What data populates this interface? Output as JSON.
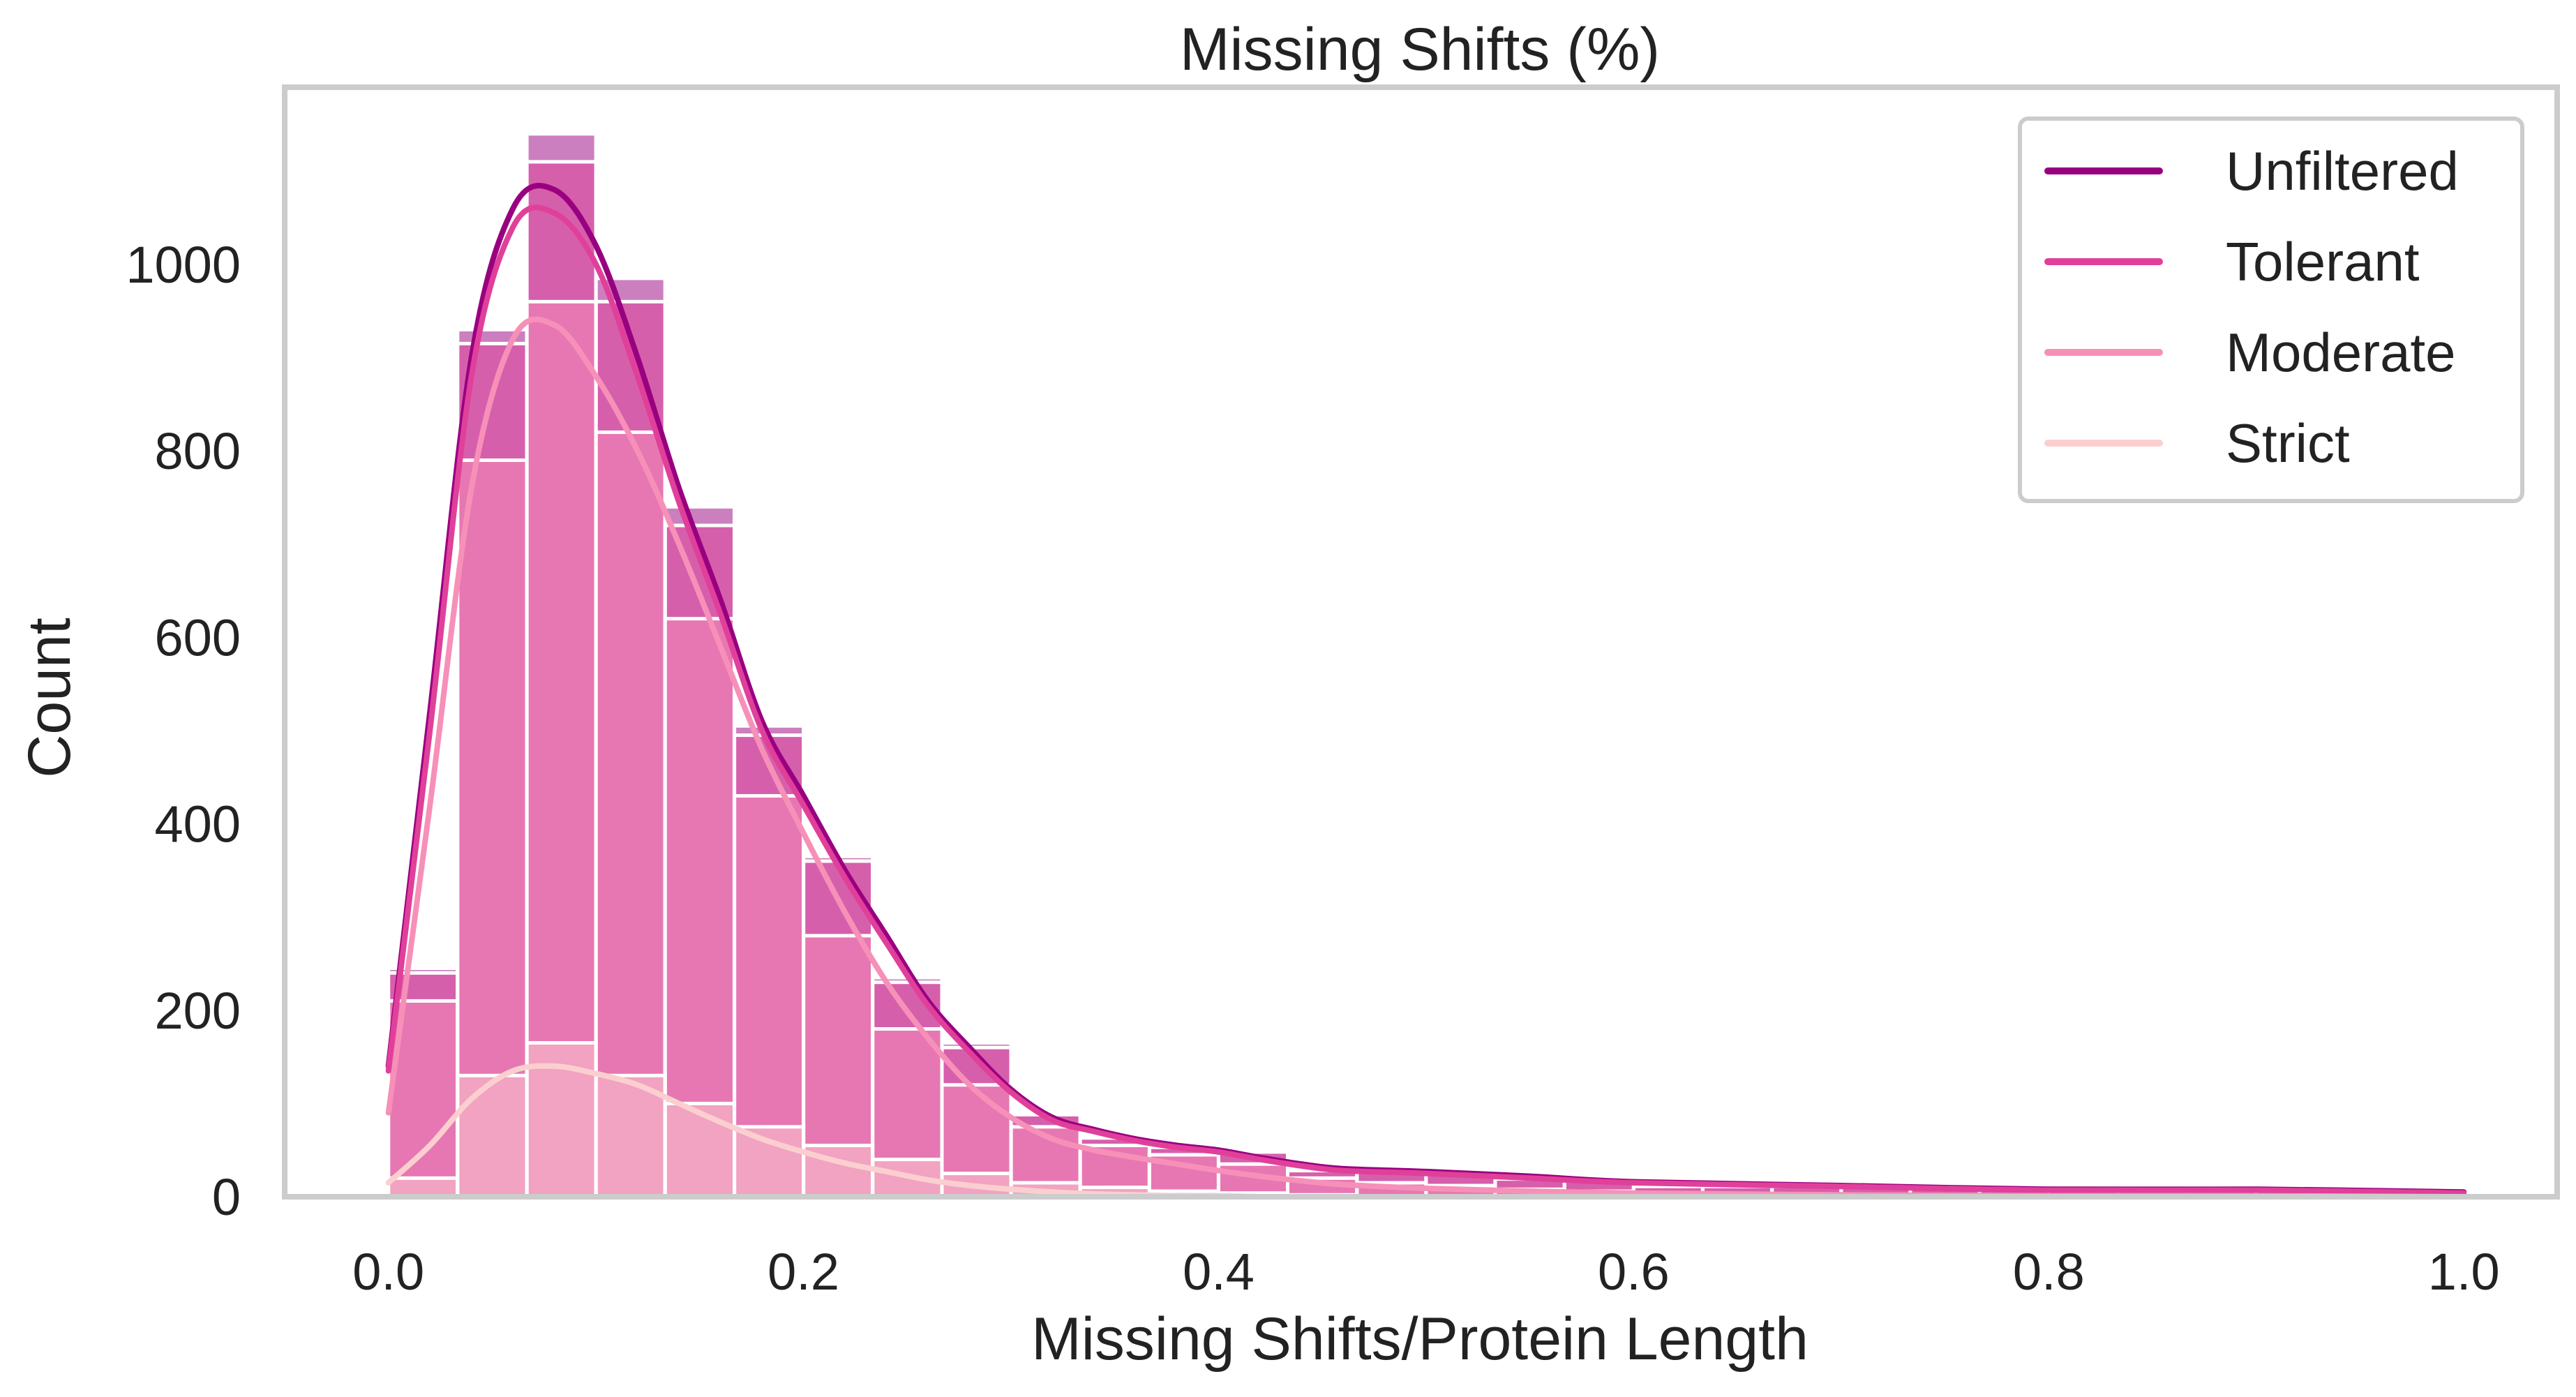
{
  "chart_data": {
    "type": "histogram",
    "title": "Missing Shifts (%)",
    "xlabel": "Missing Shifts/Protein Length",
    "ylabel": "Count",
    "xlim": [
      -0.05,
      1.045
    ],
    "ylim": [
      0,
      1190
    ],
    "xticks": [
      0.0,
      0.2,
      0.4,
      0.6,
      0.8,
      1.0
    ],
    "xtick_labels": [
      "0.0",
      "0.2",
      "0.4",
      "0.6",
      "0.8",
      "1.0"
    ],
    "yticks": [
      0,
      200,
      400,
      600,
      800,
      1000
    ],
    "ytick_labels": [
      "0",
      "200",
      "400",
      "600",
      "800",
      "1000"
    ],
    "grid": false,
    "legend_position": "top-right",
    "bin_edges": [
      0.0,
      0.0333,
      0.0667,
      0.1,
      0.1333,
      0.1667,
      0.2,
      0.2333,
      0.2667,
      0.3,
      0.3333,
      0.3667,
      0.4,
      0.4333,
      0.4667,
      0.5,
      0.5333,
      0.5667,
      0.6,
      0.6333,
      0.6667,
      0.7,
      0.7333,
      0.7667,
      0.8,
      0.8333,
      0.8667,
      0.9,
      0.9333,
      0.9667,
      1.0
    ],
    "series": [
      {
        "name": "Unfiltered",
        "color": "#990080",
        "counts": [
          245,
          930,
          1140,
          985,
          740,
          505,
          365,
          235,
          165,
          90,
          65,
          55,
          50,
          30,
          30,
          30,
          20,
          20,
          12,
          12,
          12,
          12,
          10,
          8,
          8,
          8,
          8,
          8,
          8,
          5
        ],
        "kde_x": [
          0,
          0.02,
          0.04,
          0.06,
          0.08,
          0.1,
          0.12,
          0.14,
          0.16,
          0.18,
          0.2,
          0.22,
          0.24,
          0.26,
          0.28,
          0.3,
          0.32,
          0.34,
          0.36,
          0.38,
          0.4,
          0.42,
          0.44,
          0.46,
          0.5,
          0.55,
          0.6,
          0.7,
          0.8,
          0.9,
          1.0
        ],
        "kde_y": [
          140,
          520,
          900,
          1060,
          1080,
          1020,
          900,
          760,
          640,
          510,
          430,
          350,
          280,
          210,
          160,
          115,
          85,
          72,
          62,
          55,
          50,
          42,
          35,
          30,
          27,
          22,
          16,
          12,
          8,
          8,
          5
        ]
      },
      {
        "name": "Tolerant",
        "color": "#e0409a",
        "counts": [
          240,
          915,
          1110,
          960,
          720,
          495,
          360,
          230,
          160,
          88,
          63,
          53,
          48,
          28,
          28,
          28,
          19,
          19,
          11,
          11,
          11,
          11,
          9,
          7,
          7,
          7,
          7,
          7,
          7,
          4
        ],
        "kde_x": [
          0,
          0.02,
          0.04,
          0.06,
          0.08,
          0.1,
          0.12,
          0.14,
          0.16,
          0.18,
          0.2,
          0.22,
          0.24,
          0.26,
          0.28,
          0.3,
          0.32,
          0.34,
          0.36,
          0.38,
          0.4,
          0.42,
          0.44,
          0.46,
          0.5,
          0.55,
          0.6,
          0.7,
          0.8,
          0.9,
          1.0
        ],
        "kde_y": [
          135,
          500,
          880,
          1040,
          1055,
          1000,
          880,
          745,
          625,
          500,
          420,
          342,
          272,
          205,
          155,
          112,
          82,
          70,
          60,
          53,
          48,
          40,
          33,
          28,
          25,
          20,
          15,
          11,
          7,
          7,
          4
        ]
      },
      {
        "name": "Moderate",
        "color": "#f790b8",
        "counts": [
          210,
          790,
          960,
          820,
          620,
          430,
          280,
          180,
          120,
          75,
          55,
          45,
          35,
          20,
          15,
          12,
          8,
          6,
          4,
          3,
          3,
          2,
          2,
          2,
          1,
          1,
          1,
          1,
          1,
          1
        ],
        "kde_x": [
          0,
          0.02,
          0.04,
          0.06,
          0.08,
          0.1,
          0.12,
          0.14,
          0.16,
          0.18,
          0.2,
          0.22,
          0.24,
          0.26,
          0.28,
          0.3,
          0.32,
          0.34,
          0.36,
          0.38,
          0.4,
          0.42,
          0.44,
          0.46,
          0.5,
          0.55,
          0.6,
          0.7,
          0.8,
          0.9,
          1.0
        ],
        "kde_y": [
          90,
          420,
          760,
          920,
          935,
          880,
          800,
          700,
          590,
          480,
          390,
          305,
          230,
          170,
          120,
          85,
          62,
          50,
          42,
          35,
          28,
          22,
          17,
          13,
          9,
          6,
          4,
          2,
          1,
          1,
          0
        ]
      },
      {
        "name": "Strict",
        "color": "#fbcfcf",
        "counts": [
          20,
          130,
          165,
          130,
          100,
          75,
          55,
          40,
          25,
          15,
          10,
          6,
          4,
          2,
          1,
          1,
          0,
          0,
          0,
          0,
          0,
          0,
          0,
          0,
          0,
          0,
          0,
          0,
          0,
          0
        ],
        "kde_x": [
          0,
          0.02,
          0.04,
          0.06,
          0.08,
          0.1,
          0.12,
          0.14,
          0.16,
          0.18,
          0.2,
          0.22,
          0.24,
          0.26,
          0.28,
          0.3,
          0.32,
          0.34,
          0.36,
          0.38,
          0.4,
          0.42,
          0.44,
          0.46,
          0.5,
          0.55,
          0.6,
          0.7,
          0.8,
          0.9,
          1.0
        ],
        "kde_y": [
          15,
          55,
          105,
          135,
          140,
          132,
          120,
          100,
          80,
          62,
          48,
          36,
          27,
          18,
          12,
          8,
          5,
          3,
          2,
          1,
          1,
          0,
          0,
          0,
          0,
          0,
          0,
          0,
          0,
          0,
          0
        ]
      }
    ]
  }
}
